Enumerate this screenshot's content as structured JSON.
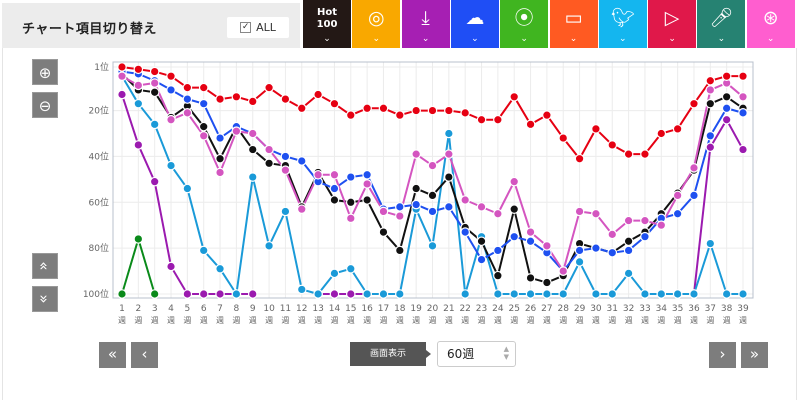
{
  "header": {
    "title": "チャート項目切り替え",
    "all_label": "ALL",
    "all_checked": true
  },
  "categories": [
    {
      "id": "hot100",
      "label": "Hot 100",
      "label2": "100",
      "label1": "Hot",
      "icon": "hot100-text",
      "color": "#231815"
    },
    {
      "id": "sales",
      "icon": "cd-icon",
      "color": "#f9a800"
    },
    {
      "id": "download",
      "icon": "download-icon",
      "color": "#a61fb3"
    },
    {
      "id": "streaming",
      "icon": "cloud-music-icon",
      "color": "#1f4ef5"
    },
    {
      "id": "radio",
      "icon": "radio-tower-icon",
      "color": "#40b520"
    },
    {
      "id": "lookup",
      "icon": "pc-disc-icon",
      "color": "#ff5a22"
    },
    {
      "id": "twitter",
      "icon": "twitter-icon",
      "color": "#14b6ef"
    },
    {
      "id": "youtube",
      "icon": "youtube-icon",
      "color": "#e0184a"
    },
    {
      "id": "karaoke",
      "icon": "microphone-icon",
      "color": "#268272"
    },
    {
      "id": "gyao",
      "icon": "circles-icon",
      "color": "#ff5ecf"
    }
  ],
  "controls": {
    "zoom_in": "zoom-in-icon",
    "zoom_out": "zoom-out-icon",
    "scroll_up": "«",
    "scroll_down": "»",
    "first": "«",
    "prev": "‹",
    "next": "›",
    "last": "»",
    "display_label": "画面表示",
    "weeks_value": "60週"
  },
  "chart_data": {
    "type": "line",
    "x": [
      1,
      2,
      3,
      4,
      5,
      6,
      7,
      8,
      9,
      10,
      11,
      12,
      13,
      14,
      15,
      16,
      17,
      18,
      19,
      20,
      21,
      22,
      23,
      24,
      25,
      26,
      27,
      28,
      29,
      30,
      31,
      32,
      33,
      34,
      35,
      36,
      37,
      38,
      39
    ],
    "x_tick_suffix": "週",
    "y_ticks": [
      "1位",
      "20位",
      "40位",
      "60位",
      "80位",
      "100位"
    ],
    "y_tick_values": [
      1,
      20,
      40,
      60,
      80,
      100
    ],
    "ylim": [
      1,
      100
    ],
    "y_inverted": true,
    "grid": true,
    "series": [
      {
        "key": "youtube",
        "color": "#e60012",
        "values": [
          1,
          2,
          3,
          5,
          10,
          10,
          15,
          14,
          16,
          10,
          15,
          19,
          13,
          17,
          22,
          19,
          19,
          22,
          20,
          20,
          20,
          21,
          24,
          24,
          14,
          26,
          22,
          32,
          41,
          28,
          35,
          39,
          39,
          30,
          28,
          17,
          7,
          5,
          5
        ]
      },
      {
        "key": "gyao",
        "color": "#d455c0",
        "values": [
          5,
          9,
          8,
          24,
          21,
          31,
          47,
          29,
          30,
          37,
          46,
          63,
          48,
          48,
          67,
          52,
          64,
          66,
          39,
          44,
          39,
          59,
          62,
          65,
          51,
          73,
          79,
          90,
          64,
          65,
          74,
          68,
          68,
          70,
          57,
          45,
          11,
          8,
          14
        ]
      },
      {
        "key": "streaming",
        "color": "#1e50f0",
        "values": [
          3,
          4,
          7,
          11,
          15,
          17,
          32,
          27,
          30,
          37,
          40,
          42,
          51,
          54,
          49,
          48,
          63,
          62,
          61,
          64,
          62,
          73,
          85,
          81,
          75,
          77,
          82,
          90,
          81,
          80,
          82,
          81,
          75,
          67,
          65,
          57,
          31,
          19,
          21
        ]
      },
      {
        "key": "hot100",
        "color": "#111111",
        "values": [
          4,
          11,
          12,
          23,
          18,
          27,
          41,
          27,
          37,
          43,
          44,
          62,
          47,
          59,
          60,
          59,
          73,
          81,
          54,
          57,
          49,
          71,
          77,
          92,
          63,
          93,
          95,
          92,
          78,
          80,
          82,
          77,
          73,
          65,
          56,
          46,
          17,
          14,
          19
        ]
      },
      {
        "key": "twitter",
        "color": "#1a9ad8",
        "values": [
          5,
          17,
          26,
          44,
          54,
          81,
          89,
          100,
          49,
          79,
          64,
          98,
          100,
          91,
          89,
          100,
          100,
          100,
          63,
          79,
          30,
          100,
          75,
          100,
          100,
          100,
          100,
          100,
          86,
          100,
          100,
          91,
          100,
          100,
          100,
          100,
          78,
          100,
          100
        ]
      },
      {
        "key": "download",
        "color": "#9b1aaf",
        "values": [
          13,
          35,
          51,
          88,
          100,
          100,
          100,
          100,
          100,
          null,
          null,
          null,
          100,
          100,
          100,
          100,
          null,
          null,
          null,
          null,
          null,
          null,
          null,
          null,
          null,
          null,
          null,
          null,
          null,
          null,
          null,
          null,
          100,
          100,
          100,
          100,
          36,
          24,
          37
        ]
      },
      {
        "key": "radio",
        "color": "#0a8a1a",
        "values": [
          100,
          76,
          100,
          null,
          null,
          null,
          null,
          null,
          null,
          null,
          null,
          null,
          null,
          null,
          null,
          null,
          null,
          null,
          null,
          null,
          null,
          null,
          null,
          null,
          null,
          null,
          null,
          null,
          null,
          null,
          null,
          null,
          null,
          null,
          null,
          null,
          null,
          null,
          null
        ]
      }
    ]
  }
}
